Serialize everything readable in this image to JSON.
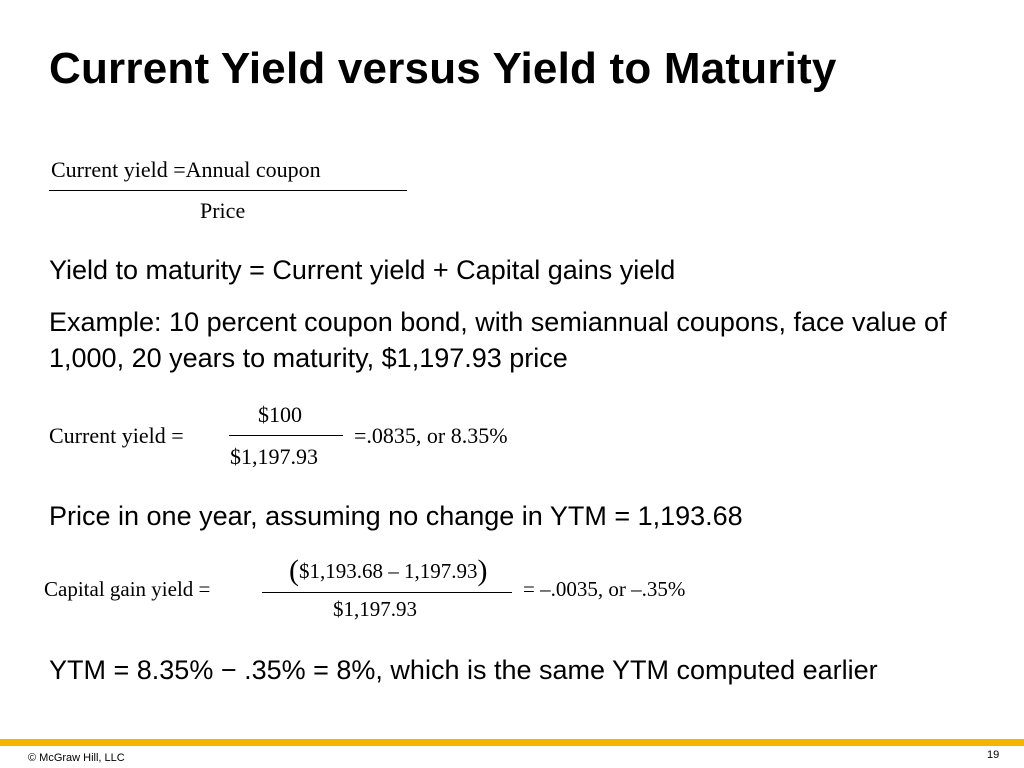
{
  "slide": {
    "title": "Current Yield versus Yield to Maturity",
    "formula1": {
      "numerator": "Current yield =Annual coupon",
      "denominator": "Price"
    },
    "ytm_definition": "Yield to maturity = Current yield + Capital gains yield",
    "example": "Example: 10 percent coupon bond, with semiannual coupons, face value of 1,000, 20 years to maturity, $1,197.93 price",
    "current_yield_calc": {
      "label": "Current yield =",
      "numerator": "$100",
      "denominator": "$1,197.93",
      "result": "=.0835,  or 8.35%"
    },
    "price_next_year": "Price in one year, assuming no change in YTM = 1,193.68",
    "capital_gain_calc": {
      "label": "Capital gain yield =",
      "paren_open": "(",
      "numerator": "$1,193.68 – 1,197.93",
      "paren_close": ")",
      "denominator": "$1,197.93",
      "result": "= –.0035, or –.35%"
    },
    "conclusion": "YTM = 8.35% − .35% = 8%, which is the same YTM computed earlier"
  },
  "footer": {
    "copyright": "© McGraw Hill, LLC",
    "page_number": "19"
  },
  "colors": {
    "accent_bar": "#f5b400"
  }
}
